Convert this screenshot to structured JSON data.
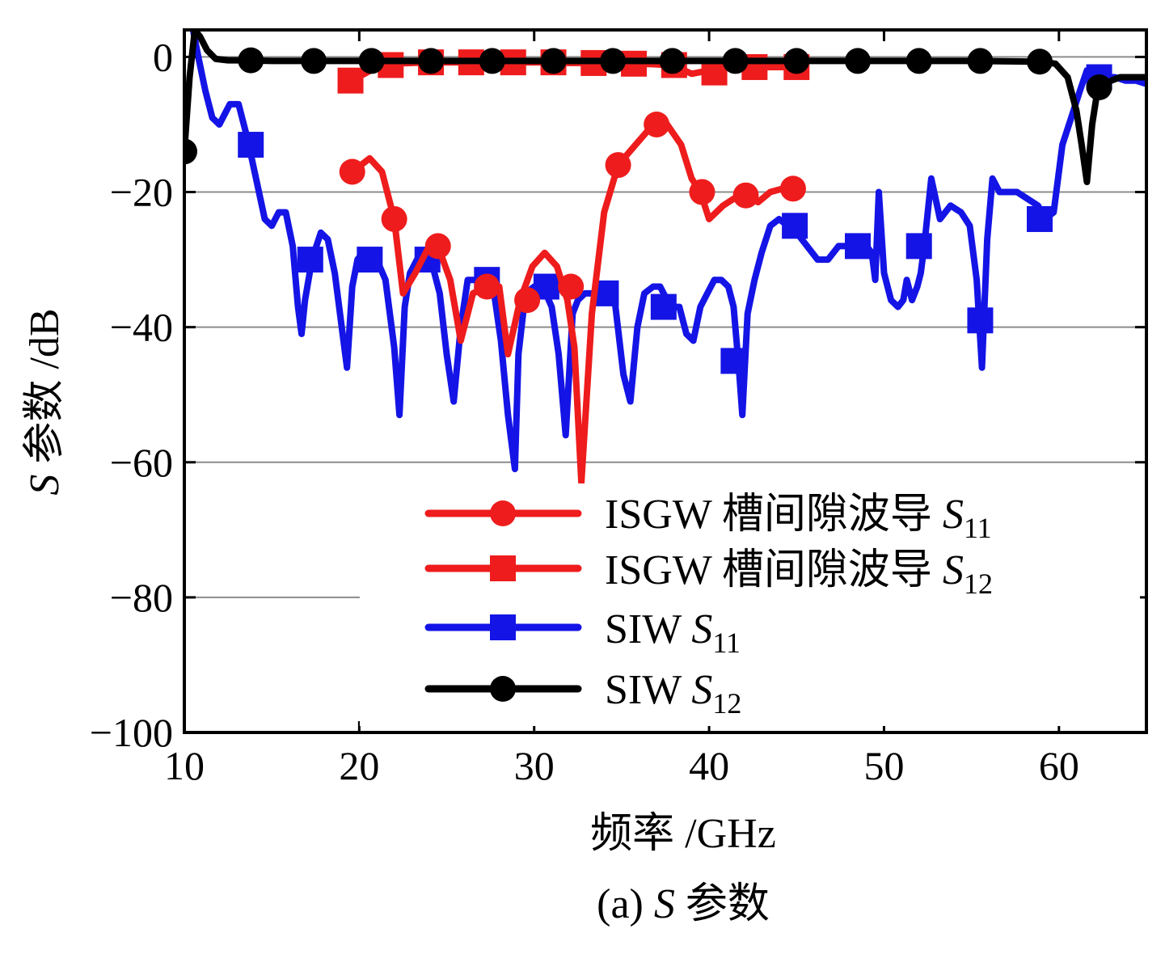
{
  "chart_data": {
    "type": "line",
    "xlabel": "频率 /GHz",
    "ylabel": "S 参数 /dB",
    "ylabel_parts": {
      "italic": "S",
      "rest": " 参数 /dB"
    },
    "caption": "(a) S 参数",
    "caption_parts": {
      "prefix": "(a) ",
      "italic": "S",
      "rest": " 参数"
    },
    "xlim": [
      10,
      65
    ],
    "ylim": [
      -100,
      4
    ],
    "xticks": [
      10,
      20,
      30,
      40,
      50,
      60
    ],
    "yticks": [
      0,
      -20,
      -40,
      -60,
      -80,
      -100
    ],
    "xtick_labels": [
      "10",
      "20",
      "30",
      "40",
      "50",
      "60"
    ],
    "ytick_labels": [
      "0",
      "−20",
      "−40",
      "−60",
      "−80",
      "−100"
    ],
    "grid": "horizontal",
    "legend_position": "lower-right",
    "series": [
      {
        "name": "ISGW 槽间隙波导 S11",
        "legend_main": "ISGW 槽间隙波导 ",
        "legend_sym": "S",
        "legend_sub": "11",
        "color": "#ee1c1c",
        "marker": "circle",
        "x": [
          19.6,
          20.6,
          21.3,
          22.0,
          22.5,
          23.2,
          23.9,
          24.5,
          25.2,
          25.8,
          26.5,
          27.3,
          28.0,
          28.5,
          29.2,
          29.9,
          30.6,
          31.3,
          31.9,
          32.3,
          32.7,
          33.3,
          34.0,
          34.8,
          35.8,
          36.8,
          37.6,
          38.4,
          39.0,
          39.5,
          40.0,
          40.8,
          41.4,
          42.1,
          42.8,
          43.5,
          44.2,
          44.8
        ],
        "y": [
          -17,
          -15,
          -17,
          -24,
          -35,
          -32,
          -28.5,
          -28,
          -33,
          -42,
          -35,
          -34,
          -34,
          -44,
          -36,
          -31,
          -29,
          -31,
          -36,
          -43,
          -63,
          -38,
          -23,
          -16,
          -13,
          -10,
          -10,
          -13,
          -18,
          -20,
          -24,
          -22,
          -21,
          -20.5,
          -21.5,
          -20,
          -19.5,
          -19.5
        ],
        "markers_x": [
          19.6,
          22.0,
          24.5,
          27.3,
          29.6,
          32.1,
          34.8,
          37.0,
          39.6,
          42.1,
          44.8
        ],
        "markers_y": [
          -17,
          -24,
          -28,
          -34,
          -36,
          -34,
          -16,
          -10,
          -20,
          -20.5,
          -19.5
        ]
      },
      {
        "name": "ISGW 槽间隙波导 S12",
        "legend_main": "ISGW 槽间隙波导 ",
        "legend_sym": "S",
        "legend_sub": "12",
        "color": "#ee1c1c",
        "marker": "square",
        "x": [
          19.5,
          20.3,
          21.0,
          22.0,
          23.0,
          24.0,
          25.0,
          26.0,
          27.0,
          28.0,
          29.0,
          30.0,
          31.0,
          32.0,
          33.0,
          34.0,
          35.0,
          36.0,
          37.0,
          38.0,
          39.0,
          40.0,
          41.0,
          42.0,
          43.0,
          44.0,
          45.0
        ],
        "y": [
          -3.5,
          -2.5,
          -1.5,
          -1.0,
          -0.9,
          -0.8,
          -0.8,
          -0.8,
          -0.8,
          -0.8,
          -0.8,
          -0.8,
          -0.8,
          -0.9,
          -0.9,
          -1.0,
          -1.0,
          -1.0,
          -1.1,
          -1.3,
          -2.5,
          -2.0,
          -1.5,
          -1.5,
          -1.5,
          -1.5,
          -1.5
        ],
        "markers_x": [
          19.5,
          21.8,
          24.1,
          26.4,
          28.8,
          31.1,
          33.4,
          35.7,
          38.0,
          40.3,
          42.6,
          45.0
        ],
        "markers_y": [
          -3.5,
          -1.2,
          -0.8,
          -0.8,
          -0.8,
          -0.8,
          -0.9,
          -1.0,
          -1.2,
          -2.3,
          -1.5,
          -1.5
        ]
      },
      {
        "name": "SIW S11",
        "legend_main": "SIW ",
        "legend_sym": "S",
        "legend_sub": "11",
        "color": "#1414e6",
        "marker": "square",
        "x": [
          10.5,
          10.8,
          11.2,
          11.6,
          12.0,
          12.6,
          13.1,
          13.6,
          14.1,
          14.6,
          15.0,
          15.4,
          15.8,
          16.2,
          16.5,
          16.7,
          16.9,
          17.3,
          17.8,
          18.2,
          18.6,
          19.0,
          19.3,
          19.6,
          19.9,
          20.2,
          20.6,
          21.0,
          21.5,
          22.0,
          22.3,
          22.6,
          22.9,
          23.3,
          23.8,
          24.2,
          24.6,
          25.0,
          25.4,
          25.8,
          26.2,
          26.6,
          27.0,
          27.6,
          28.1,
          28.5,
          28.9,
          29.1,
          29.5,
          30.0,
          30.5,
          31.0,
          31.4,
          31.8,
          32.2,
          32.5,
          32.9,
          33.2,
          33.6,
          34.0,
          34.6,
          35.1,
          35.5,
          35.9,
          36.3,
          36.8,
          37.2,
          37.6,
          37.9,
          38.3,
          38.7,
          39.1,
          39.5,
          39.9,
          40.3,
          40.7,
          41.1,
          41.4,
          41.7,
          41.9,
          42.2,
          42.6,
          43.0,
          43.5,
          44.0,
          44.5,
          45.0,
          45.6,
          46.2,
          46.8,
          47.4,
          48.0,
          48.6,
          49.0,
          49.3,
          49.5,
          49.7,
          50.0,
          50.4,
          50.8,
          51.1,
          51.3,
          51.6,
          51.9,
          52.1,
          52.3,
          52.7,
          53.2,
          53.8,
          54.4,
          54.9,
          55.3,
          55.6,
          55.9,
          56.2,
          56.6,
          57.0,
          57.6,
          58.2,
          58.8,
          59.2,
          59.7,
          60.2,
          60.7,
          61.2,
          61.6,
          62.1,
          62.6,
          63.2,
          63.8,
          64.4,
          65.0
        ],
        "y": [
          4,
          0,
          -5,
          -9,
          -10,
          -7,
          -7,
          -12,
          -18,
          -24,
          -25,
          -23,
          -23,
          -28,
          -37,
          -41,
          -36,
          -30,
          -26,
          -27,
          -32,
          -40,
          -46,
          -34,
          -30,
          -29,
          -29,
          -30,
          -33,
          -43,
          -53,
          -37,
          -32,
          -30,
          -30,
          -31,
          -35,
          -44,
          -51,
          -40,
          -33,
          -33,
          -33,
          -33,
          -42,
          -53,
          -61,
          -44,
          -35,
          -34,
          -34,
          -37,
          -44,
          -56,
          -38,
          -36,
          -35,
          -35,
          -35,
          -35,
          -36,
          -47,
          -51,
          -40,
          -35,
          -34,
          -34,
          -36,
          -37,
          -37,
          -41,
          -42,
          -37,
          -35,
          -33,
          -33,
          -34,
          -37,
          -46,
          -53,
          -38,
          -33,
          -29,
          -25,
          -24,
          -25,
          -26,
          -28,
          -30,
          -30,
          -28,
          -28,
          -28,
          -28,
          -29,
          -33,
          -20,
          -32,
          -36,
          -37,
          -36,
          -33,
          -36,
          -34,
          -32,
          -28,
          -18,
          -24,
          -22,
          -23,
          -25,
          -33,
          -46,
          -27,
          -18,
          -20,
          -20,
          -20,
          -21,
          -22,
          -24,
          -23,
          -13,
          -9,
          -5,
          -2,
          -2,
          -3,
          -3,
          -3.5,
          -3.5,
          -4
        ],
        "markers_x": [
          13.8,
          17.2,
          20.6,
          23.9,
          27.3,
          30.7,
          34.1,
          37.4,
          41.4,
          44.9,
          48.5,
          52.0,
          55.5,
          58.9,
          62.3
        ],
        "markers_y": [
          -13,
          -30,
          -30,
          -30,
          -33,
          -34,
          -35,
          -37,
          -45,
          -25,
          -28,
          -28,
          -39,
          -24,
          -3
        ]
      },
      {
        "name": "SIW S12",
        "legend_main": "SIW ",
        "legend_sym": "S",
        "legend_sub": "12",
        "color": "#000000",
        "marker": "circle",
        "x": [
          10.0,
          10.3,
          10.6,
          10.9,
          11.3,
          11.8,
          12.5,
          13.5,
          15,
          20,
          25,
          30,
          35,
          40,
          45,
          50,
          55,
          59.0,
          59.8,
          60.5,
          61.0,
          61.3,
          61.6,
          61.9,
          62.2,
          62.6,
          63.0,
          63.5,
          64.0,
          64.5,
          65.0
        ],
        "y": [
          -14,
          -3,
          4,
          3,
          1,
          -0.3,
          -0.5,
          -0.5,
          -0.6,
          -0.6,
          -0.6,
          -0.6,
          -0.6,
          -0.6,
          -0.6,
          -0.6,
          -0.6,
          -0.7,
          -1.0,
          -3.0,
          -8,
          -13,
          -18.5,
          -10,
          -5,
          -4,
          -3.5,
          -3,
          -3,
          -3,
          -3
        ],
        "markers_x": [
          10.0,
          13.8,
          17.4,
          20.7,
          24.1,
          27.6,
          31.1,
          34.5,
          37.9,
          41.5,
          45.0,
          48.5,
          52.0,
          55.5,
          58.9,
          62.3
        ],
        "markers_y": [
          -14,
          -0.5,
          -0.6,
          -0.6,
          -0.6,
          -0.6,
          -0.6,
          -0.6,
          -0.6,
          -0.6,
          -0.6,
          -0.6,
          -0.6,
          -0.6,
          -0.7,
          -4.5
        ]
      }
    ]
  }
}
